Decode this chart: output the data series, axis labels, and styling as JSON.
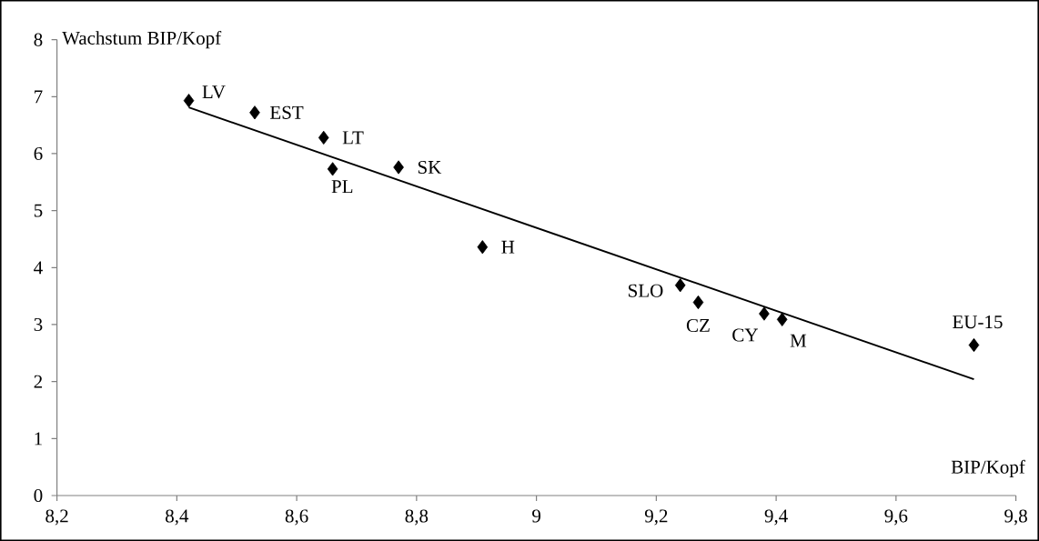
{
  "chart_data": {
    "type": "scatter",
    "xlabel": "BIP/Kopf",
    "ylabel": "Wachstum BIP/Kopf",
    "grid": false,
    "xlim": [
      8.2,
      9.8
    ],
    "xticks": [
      {
        "value": 8.2,
        "label": "8,2"
      },
      {
        "value": 8.4,
        "label": "8,4"
      },
      {
        "value": 8.6,
        "label": "8,6"
      },
      {
        "value": 8.8,
        "label": "8,8"
      },
      9,
      {
        "value": 9.2,
        "label": "9,2"
      },
      {
        "value": 9.4,
        "label": "9,4"
      },
      {
        "value": 9.6,
        "label": "9,6"
      },
      {
        "value": 9.8,
        "label": "9,8"
      }
    ],
    "ylim": [
      0,
      8
    ],
    "yticks": [
      0,
      1,
      2,
      3,
      4,
      5,
      6,
      7,
      8
    ],
    "series": [
      {
        "marker": "diamond",
        "color": "#000000",
        "x": [
          8.42,
          8.53,
          8.645,
          8.66,
          8.77,
          8.91,
          9.24,
          9.27,
          9.38,
          9.41,
          9.73
        ],
        "values": [
          6.93,
          6.72,
          6.28,
          5.73,
          5.76,
          4.36,
          3.69,
          3.39,
          3.19,
          3.09,
          2.64
        ]
      },
      {
        "type": "line",
        "marker": "none",
        "color": "#000000",
        "x": [
          8.42,
          9.73
        ],
        "values": [
          6.81,
          2.04
        ]
      }
    ],
    "annotations": [
      {
        "text": "LV",
        "x": 8.42,
        "y": 6.93
      },
      {
        "text": "EST",
        "x": 8.53,
        "y": 6.72
      },
      {
        "text": "LT",
        "x": 8.645,
        "y": 6.28
      },
      {
        "text": "PL",
        "x": 8.66,
        "y": 5.73
      },
      {
        "text": "SK",
        "x": 8.77,
        "y": 5.76
      },
      {
        "text": "H",
        "x": 8.91,
        "y": 4.36
      },
      {
        "text": "SLO",
        "x": 9.24,
        "y": 3.69
      },
      {
        "text": "CZ",
        "x": 9.27,
        "y": 3.39
      },
      {
        "text": "CY",
        "x": 9.38,
        "y": 3.19
      },
      {
        "text": "M",
        "x": 9.41,
        "y": 3.09
      },
      {
        "text": "EU-15",
        "x": 9.73,
        "y": 2.64
      }
    ]
  }
}
